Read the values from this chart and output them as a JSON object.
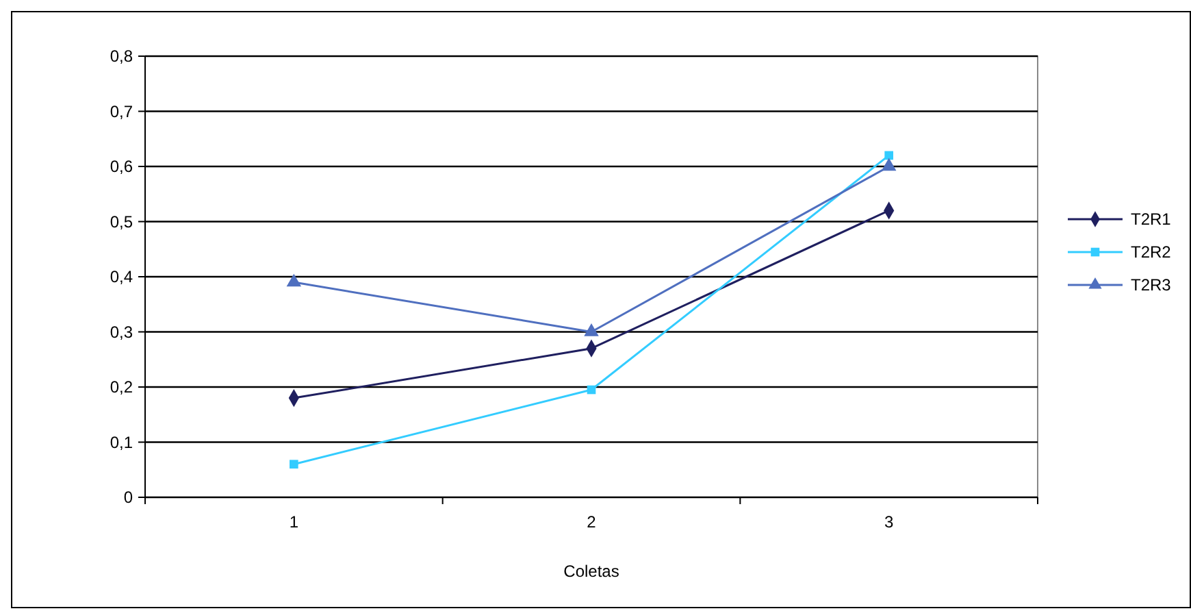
{
  "chart_data": {
    "type": "line",
    "xlabel": "Coletas",
    "categories": [
      "1",
      "2",
      "3"
    ],
    "series": [
      {
        "name": "T2R1",
        "color": "#1f1f5f",
        "marker": "diamond",
        "values": [
          0.18,
          0.27,
          0.52
        ]
      },
      {
        "name": "T2R2",
        "color": "#33ccff",
        "marker": "square",
        "values": [
          0.06,
          0.195,
          0.62
        ]
      },
      {
        "name": "T2R3",
        "color": "#4f6fbf",
        "marker": "triangle",
        "values": [
          0.39,
          0.3,
          0.6
        ]
      }
    ],
    "ylim": [
      0,
      0.8
    ],
    "yticks": [
      {
        "value": 0,
        "label": "0"
      },
      {
        "value": 0.1,
        "label": "0,1"
      },
      {
        "value": 0.2,
        "label": "0,2"
      },
      {
        "value": 0.3,
        "label": "0,3"
      },
      {
        "value": 0.4,
        "label": "0,4"
      },
      {
        "value": 0.5,
        "label": "0,5"
      },
      {
        "value": 0.6,
        "label": "0,6"
      },
      {
        "value": 0.7,
        "label": "0,7"
      },
      {
        "value": 0.8,
        "label": "0,8"
      }
    ],
    "grid": "y",
    "legend": "right",
    "line_style": "solid"
  }
}
